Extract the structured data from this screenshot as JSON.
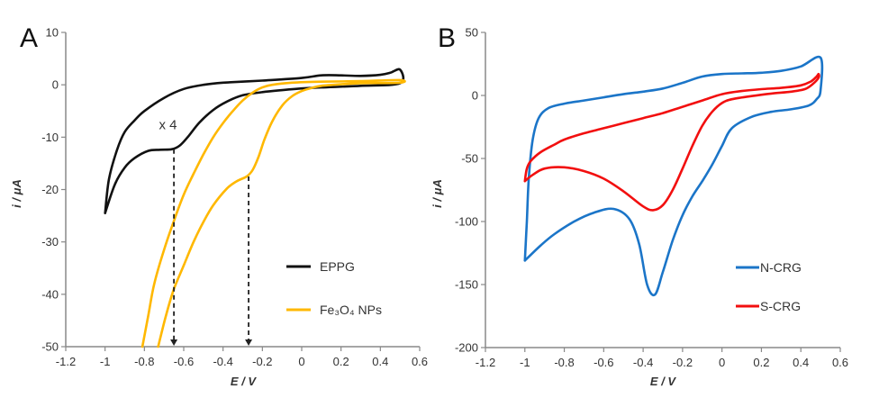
{
  "chart_data": [
    {
      "type": "line",
      "panel_label": "A",
      "title": "",
      "xlabel": "E / V",
      "ylabel": "i / μA",
      "xlim": [
        -1.2,
        0.6
      ],
      "ylim": [
        -50,
        10
      ],
      "xticks": [
        -1.2,
        -1,
        -0.8,
        -0.6,
        -0.4,
        -0.2,
        0,
        0.2,
        0.4,
        0.6
      ],
      "xtick_labels": [
        "-1.2",
        "-1",
        "-0.8",
        "-0.6",
        "-0.4",
        "-0.2",
        "0",
        "0.2",
        "0.4",
        "0.6"
      ],
      "yticks": [
        10,
        0,
        -10,
        -20,
        -30,
        -40,
        -50
      ],
      "ytick_labels": [
        "10",
        "0",
        "-10",
        "-20",
        "-30",
        "-40",
        "-50"
      ],
      "grid": false,
      "legend_position": "bottom-right",
      "annotations": [
        {
          "text": "x 4",
          "x": -0.68,
          "y": -8.5
        },
        {
          "type": "dashed-arrow",
          "x": -0.65,
          "y_from": -12.3,
          "y_to": -50
        },
        {
          "type": "dashed-arrow",
          "x": -0.27,
          "y_from": -17.5,
          "y_to": -50
        }
      ],
      "series": [
        {
          "name": "EPPG",
          "color": "#111111",
          "points": [
            [
              -1.0,
              -24.5
            ],
            [
              -0.98,
              -18
            ],
            [
              -0.94,
              -12.5
            ],
            [
              -0.9,
              -9
            ],
            [
              -0.85,
              -6.8
            ],
            [
              -0.8,
              -5
            ],
            [
              -0.7,
              -2.5
            ],
            [
              -0.6,
              -0.8
            ],
            [
              -0.5,
              0
            ],
            [
              -0.4,
              0.4
            ],
            [
              -0.2,
              0.8
            ],
            [
              0,
              1.3
            ],
            [
              0.1,
              1.8
            ],
            [
              0.2,
              1.8
            ],
            [
              0.3,
              1.7
            ],
            [
              0.4,
              1.9
            ],
            [
              0.45,
              2.3
            ],
            [
              0.5,
              2.9
            ],
            [
              0.5,
              0.3
            ],
            [
              0.3,
              -0.2
            ],
            [
              0.1,
              -0.5
            ],
            [
              0,
              -0.7
            ],
            [
              -0.2,
              -1.4
            ],
            [
              -0.3,
              -2
            ],
            [
              -0.38,
              -3.2
            ],
            [
              -0.45,
              -4.8
            ],
            [
              -0.52,
              -7.2
            ],
            [
              -0.58,
              -10
            ],
            [
              -0.62,
              -11.6
            ],
            [
              -0.66,
              -12.3
            ],
            [
              -0.72,
              -12.4
            ],
            [
              -0.78,
              -12.6
            ],
            [
              -0.85,
              -14
            ],
            [
              -0.9,
              -15.8
            ],
            [
              -0.95,
              -19
            ],
            [
              -1.0,
              -24.5
            ]
          ]
        },
        {
          "name": "Fe3O4 NPs",
          "legend_label": "Fe₃O₄ NPs",
          "color": "#FFB800",
          "points": [
            [
              -0.81,
              -50
            ],
            [
              -0.78,
              -44
            ],
            [
              -0.75,
              -38
            ],
            [
              -0.7,
              -31.5
            ],
            [
              -0.65,
              -26
            ],
            [
              -0.6,
              -21
            ],
            [
              -0.55,
              -17
            ],
            [
              -0.5,
              -13.3
            ],
            [
              -0.45,
              -10
            ],
            [
              -0.4,
              -7.3
            ],
            [
              -0.35,
              -5
            ],
            [
              -0.3,
              -3
            ],
            [
              -0.25,
              -1.5
            ],
            [
              -0.2,
              -0.5
            ],
            [
              -0.15,
              0
            ],
            [
              -0.05,
              0.4
            ],
            [
              0.1,
              0.6
            ],
            [
              0.3,
              0.7
            ],
            [
              0.5,
              0.9
            ],
            [
              0.5,
              0.4
            ],
            [
              0.3,
              0.3
            ],
            [
              0.2,
              0.1
            ],
            [
              0.1,
              -0.2
            ],
            [
              0.05,
              -0.6
            ],
            [
              0,
              -1.2
            ],
            [
              -0.05,
              -2.2
            ],
            [
              -0.1,
              -4
            ],
            [
              -0.15,
              -7
            ],
            [
              -0.19,
              -10.5
            ],
            [
              -0.22,
              -13.8
            ],
            [
              -0.25,
              -16.3
            ],
            [
              -0.28,
              -17.5
            ],
            [
              -0.33,
              -18.4
            ],
            [
              -0.38,
              -19.8
            ],
            [
              -0.45,
              -23
            ],
            [
              -0.5,
              -26.2
            ],
            [
              -0.55,
              -30
            ],
            [
              -0.6,
              -34.5
            ],
            [
              -0.65,
              -39
            ],
            [
              -0.69,
              -44
            ],
            [
              -0.73,
              -50
            ]
          ]
        }
      ]
    },
    {
      "type": "line",
      "panel_label": "B",
      "title": "",
      "xlabel": "E / V",
      "ylabel": "i / μA",
      "xlim": [
        -1.2,
        0.6
      ],
      "ylim": [
        -200,
        50
      ],
      "xticks": [
        -1.2,
        -1,
        -0.8,
        -0.6,
        -0.4,
        -0.2,
        0,
        0.2,
        0.4,
        0.6
      ],
      "xtick_labels": [
        "-1.2",
        "-1",
        "-0.8",
        "-0.6",
        "-0.4",
        "-0.2",
        "0",
        "0.2",
        "0.4",
        "0.6"
      ],
      "yticks": [
        50,
        0,
        -50,
        -100,
        -150,
        -200
      ],
      "ytick_labels": [
        "50",
        "0",
        "-50",
        "-100",
        "-150",
        "-200"
      ],
      "grid": false,
      "legend_position": "bottom-right",
      "series": [
        {
          "name": "N-CRG",
          "color": "#1B75C8",
          "points": [
            [
              -1.0,
              -131
            ],
            [
              -0.99,
              -100
            ],
            [
              -0.98,
              -65
            ],
            [
              -0.96,
              -35
            ],
            [
              -0.93,
              -18
            ],
            [
              -0.88,
              -10
            ],
            [
              -0.8,
              -6.5
            ],
            [
              -0.7,
              -4
            ],
            [
              -0.6,
              -1.5
            ],
            [
              -0.5,
              1
            ],
            [
              -0.4,
              3
            ],
            [
              -0.3,
              5.5
            ],
            [
              -0.2,
              10
            ],
            [
              -0.1,
              15
            ],
            [
              0,
              17
            ],
            [
              0.1,
              17.5
            ],
            [
              0.2,
              18
            ],
            [
              0.3,
              19.5
            ],
            [
              0.4,
              23
            ],
            [
              0.5,
              30
            ],
            [
              0.5,
              4
            ],
            [
              0.48,
              -3
            ],
            [
              0.44,
              -8
            ],
            [
              0.35,
              -11
            ],
            [
              0.25,
              -13
            ],
            [
              0.15,
              -17
            ],
            [
              0.05,
              -26
            ],
            [
              0,
              -40
            ],
            [
              -0.05,
              -55
            ],
            [
              -0.1,
              -68
            ],
            [
              -0.15,
              -80
            ],
            [
              -0.2,
              -95
            ],
            [
              -0.25,
              -115
            ],
            [
              -0.3,
              -140
            ],
            [
              -0.34,
              -158
            ],
            [
              -0.38,
              -150
            ],
            [
              -0.42,
              -118
            ],
            [
              -0.47,
              -98
            ],
            [
              -0.55,
              -90
            ],
            [
              -0.65,
              -93
            ],
            [
              -0.75,
              -100
            ],
            [
              -0.85,
              -110
            ],
            [
              -0.92,
              -119
            ],
            [
              -1.0,
              -131
            ]
          ]
        },
        {
          "name": "S-CRG",
          "color": "#F20F0F",
          "points": [
            [
              -1.0,
              -68
            ],
            [
              -0.99,
              -58
            ],
            [
              -0.97,
              -52
            ],
            [
              -0.92,
              -45
            ],
            [
              -0.85,
              -39
            ],
            [
              -0.8,
              -35
            ],
            [
              -0.7,
              -30
            ],
            [
              -0.6,
              -26
            ],
            [
              -0.5,
              -22
            ],
            [
              -0.4,
              -18
            ],
            [
              -0.3,
              -14
            ],
            [
              -0.2,
              -9
            ],
            [
              -0.1,
              -4
            ],
            [
              0,
              1
            ],
            [
              0.1,
              3.5
            ],
            [
              0.2,
              5
            ],
            [
              0.3,
              6
            ],
            [
              0.4,
              8
            ],
            [
              0.45,
              11
            ],
            [
              0.48,
              15
            ],
            [
              0.49,
              17
            ],
            [
              0.49,
              14
            ],
            [
              0.46,
              9
            ],
            [
              0.42,
              5
            ],
            [
              0.35,
              3
            ],
            [
              0.25,
              1.5
            ],
            [
              0.15,
              -0.5
            ],
            [
              0.05,
              -3
            ],
            [
              0,
              -6
            ],
            [
              -0.05,
              -13
            ],
            [
              -0.1,
              -24
            ],
            [
              -0.15,
              -40
            ],
            [
              -0.2,
              -58
            ],
            [
              -0.25,
              -75
            ],
            [
              -0.3,
              -87
            ],
            [
              -0.35,
              -91
            ],
            [
              -0.4,
              -88
            ],
            [
              -0.5,
              -76
            ],
            [
              -0.6,
              -66
            ],
            [
              -0.7,
              -60
            ],
            [
              -0.8,
              -57
            ],
            [
              -0.9,
              -58
            ],
            [
              -0.96,
              -63
            ],
            [
              -1.0,
              -68
            ]
          ]
        }
      ]
    }
  ]
}
